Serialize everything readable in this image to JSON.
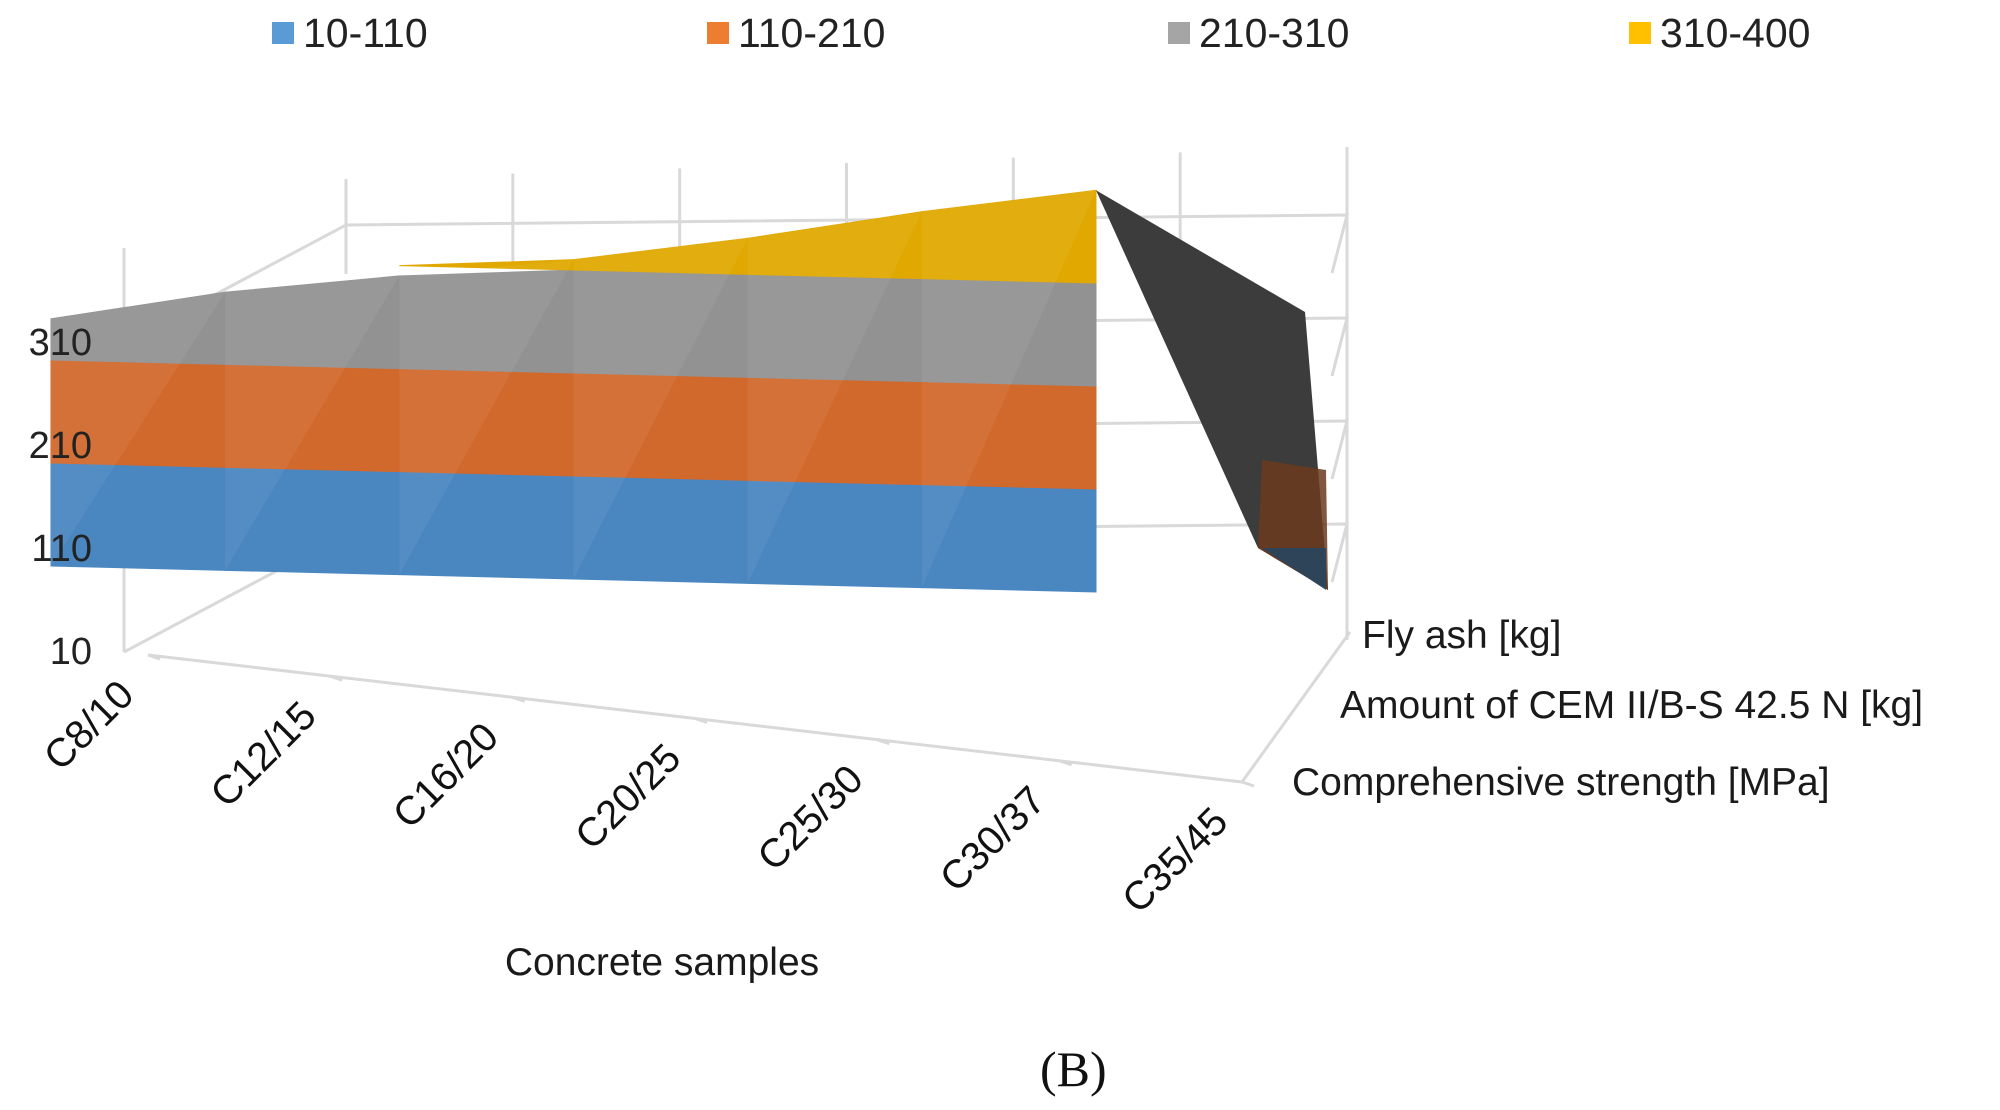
{
  "chart_data": {
    "type": "surface",
    "title": "",
    "xlabel": "Concrete samples",
    "categories": [
      "C8/10",
      "C12/15",
      "C16/20",
      "C20/25",
      "C25/30",
      "C30/37",
      "C35/45"
    ],
    "series": [
      {
        "name": "Comprehensive strength [MPa]",
        "values": [
          10,
          15,
          20,
          25,
          30,
          37,
          45
        ]
      },
      {
        "name": "Amount of CEM II/B-S 42.5 N [kg]",
        "values": [
          250,
          280,
          300,
          320,
          345,
          375,
          410
        ]
      },
      {
        "name": "Fly ash [kg]",
        "values": [
          10,
          10,
          10,
          10,
          10,
          10,
          10
        ]
      }
    ],
    "z_ticks": [
      "10",
      "110",
      "210",
      "310"
    ],
    "zlim": [
      10,
      400
    ],
    "legend": [
      {
        "label": "10-110",
        "color": "#5b9bd5"
      },
      {
        "label": "110-210",
        "color": "#ed7d31"
      },
      {
        "label": "210-310",
        "color": "#a5a5a5"
      },
      {
        "label": "310-400",
        "color": "#ffc000"
      }
    ],
    "legend_position": "top"
  },
  "panel_label": "(B)"
}
